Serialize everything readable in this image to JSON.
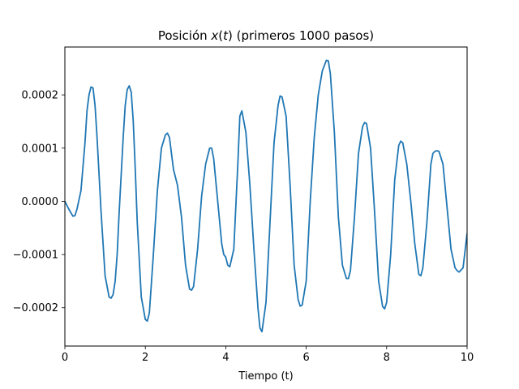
{
  "chart_data": {
    "type": "line",
    "title": "Posición x(t) (primeros 1000 pasos)",
    "title_parts": {
      "before": "Posición ",
      "var": "x",
      "open": "(",
      "arg": "t",
      "close": ")",
      "after": " (primeros 1000 pasos)"
    },
    "xlabel": "Tiempo (t)",
    "ylabel": "",
    "xlim": [
      0,
      10
    ],
    "ylim": [
      -0.000272,
      0.00029
    ],
    "xticks": [
      0,
      2,
      4,
      6,
      8,
      10
    ],
    "xtick_labels": [
      "0",
      "2",
      "4",
      "6",
      "8",
      "10"
    ],
    "yticks": [
      -0.0002,
      -0.0001,
      0.0,
      0.0001,
      0.0002
    ],
    "ytick_labels": [
      "−0.0002",
      "−0.0001",
      "0.0000",
      "0.0001",
      "0.0002"
    ],
    "grid": false,
    "line_color": "#1f77b4",
    "series": [
      {
        "x": [
          0,
          0.1,
          0.2,
          0.25,
          0.3,
          0.4,
          0.5,
          0.55,
          0.6,
          0.65,
          0.7,
          0.75,
          0.8,
          0.9,
          1.0,
          1.1,
          1.15,
          1.2,
          1.25,
          1.3,
          1.35,
          1.45,
          1.5,
          1.55,
          1.6,
          1.65,
          1.7,
          1.75,
          1.8,
          1.9,
          2.0,
          2.05,
          2.1,
          2.2,
          2.3,
          2.4,
          2.5,
          2.55,
          2.6,
          2.7,
          2.8,
          2.9,
          3.0,
          3.1,
          3.15,
          3.2,
          3.3,
          3.4,
          3.5,
          3.6,
          3.65,
          3.7,
          3.8,
          3.9,
          3.95,
          4.0,
          4.05,
          4.1,
          4.2,
          4.3,
          4.35,
          4.4,
          4.5,
          4.6,
          4.7,
          4.8,
          4.85,
          4.9,
          5.0,
          5.1,
          5.2,
          5.3,
          5.35,
          5.4,
          5.5,
          5.6,
          5.7,
          5.8,
          5.85,
          5.9,
          6.0,
          6.1,
          6.2,
          6.3,
          6.4,
          6.5,
          6.55,
          6.6,
          6.7,
          6.8,
          6.9,
          7.0,
          7.05,
          7.1,
          7.2,
          7.3,
          7.4,
          7.45,
          7.5,
          7.6,
          7.7,
          7.8,
          7.9,
          7.95,
          8.0,
          8.1,
          8.2,
          8.3,
          8.35,
          8.4,
          8.5,
          8.6,
          8.7,
          8.8,
          8.85,
          8.9,
          9.0,
          9.1,
          9.15,
          9.2,
          9.25,
          9.3,
          9.4,
          9.5,
          9.6,
          9.7,
          9.75,
          9.8,
          9.9,
          10.0
        ],
        "values": [
          0.0,
          -1.5e-05,
          -2.8e-05,
          -2.7e-05,
          -1.5e-05,
          2e-05,
          0.00011,
          0.00017,
          0.0002,
          0.000215,
          0.000213,
          0.00018,
          0.00012,
          -2e-05,
          -0.00014,
          -0.00018,
          -0.000182,
          -0.000175,
          -0.00015,
          -0.0001,
          -2e-05,
          0.00012,
          0.00018,
          0.00021,
          0.000217,
          0.000205,
          0.00015,
          6e-05,
          -4e-05,
          -0.00018,
          -0.000222,
          -0.000225,
          -0.00021,
          -0.0001,
          2e-05,
          0.0001,
          0.000125,
          0.000128,
          0.00012,
          6e-05,
          3e-05,
          -3e-05,
          -0.00012,
          -0.000165,
          -0.000167,
          -0.00016,
          -9e-05,
          1e-05,
          7e-05,
          0.0001,
          0.0001,
          8e-05,
          0.0,
          -8e-05,
          -0.0001,
          -0.000105,
          -0.00012,
          -0.000123,
          -9e-05,
          7e-05,
          0.00016,
          0.00017,
          0.00013,
          3e-05,
          -9e-05,
          -0.0002,
          -0.000238,
          -0.000245,
          -0.00019,
          -4e-05,
          0.00011,
          0.00018,
          0.000198,
          0.000196,
          0.00016,
          3e-05,
          -0.00012,
          -0.000185,
          -0.000197,
          -0.000195,
          -0.00015,
          0.0,
          0.00012,
          0.0002,
          0.000245,
          0.000265,
          0.000264,
          0.00024,
          0.00013,
          -3e-05,
          -0.00012,
          -0.000145,
          -0.000145,
          -0.00013,
          -3e-05,
          9e-05,
          0.00014,
          0.000148,
          0.000146,
          0.0001,
          -2e-05,
          -0.00015,
          -0.000198,
          -0.000202,
          -0.00019,
          -0.0001,
          4e-05,
          0.000105,
          0.000113,
          0.00011,
          7e-05,
          0.0,
          -8e-05,
          -0.000137,
          -0.00014,
          -0.000125,
          -4e-05,
          7e-05,
          9e-05,
          9.4e-05,
          9.5e-05,
          9.4e-05,
          7e-05,
          -1e-05,
          -9e-05,
          -0.000125,
          -0.00013,
          -0.000133,
          -0.000125,
          -6e-05
        ]
      }
    ]
  }
}
